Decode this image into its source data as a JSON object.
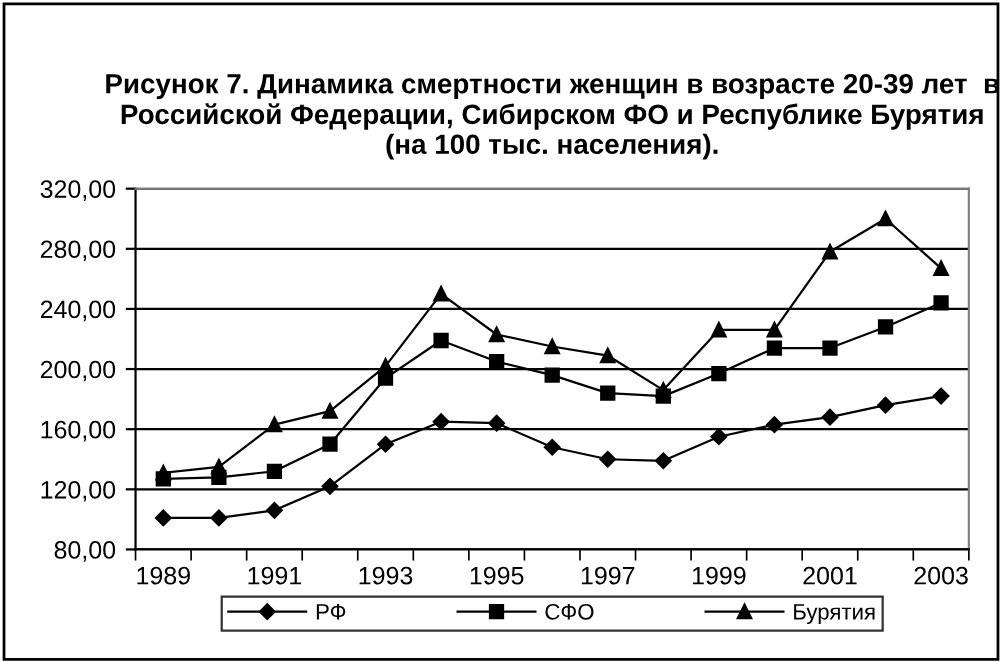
{
  "chart_data": {
    "type": "line",
    "title": "Рисунок 7. Динамика смертности женщин в возрасте 20-39 лет  в Российской Федерации, Сибирском ФО и Республике Бурятия (на 100 тыс. населения).",
    "categories": [
      "1989",
      null,
      "1991",
      null,
      "1993",
      null,
      "1995",
      null,
      "1997",
      null,
      "1999",
      null,
      "2001",
      null,
      "2003"
    ],
    "series": [
      {
        "name": "РФ",
        "color": "#000000",
        "marker": "diamond",
        "values": [
          101,
          101,
          106,
          122,
          150,
          165,
          164,
          148,
          140,
          139,
          155,
          163,
          168,
          176,
          182
        ]
      },
      {
        "name": "СФО",
        "color": "#000000",
        "marker": "square",
        "values": [
          127,
          128,
          132,
          150,
          194,
          219,
          205,
          196,
          184,
          182,
          197,
          214,
          214,
          228,
          244
        ]
      },
      {
        "name": "Бурятия",
        "color": "#000000",
        "marker": "triangle",
        "values": [
          131,
          135,
          163,
          172,
          202,
          250,
          223,
          215,
          209,
          186,
          226,
          226,
          278,
          300,
          267
        ]
      }
    ],
    "ylim": [
      80,
      320
    ],
    "yticks": [
      {
        "value": 80,
        "label": "80,00"
      },
      {
        "value": 120,
        "label": "120,00"
      },
      {
        "value": 160,
        "label": "160,00"
      },
      {
        "value": 200,
        "label": "200,00"
      },
      {
        "value": 240,
        "label": "240,00"
      },
      {
        "value": 280,
        "label": "280,00"
      },
      {
        "value": 320,
        "label": "320,00"
      }
    ],
    "grid": "y",
    "legend": "bottom",
    "line_style": "solid"
  }
}
